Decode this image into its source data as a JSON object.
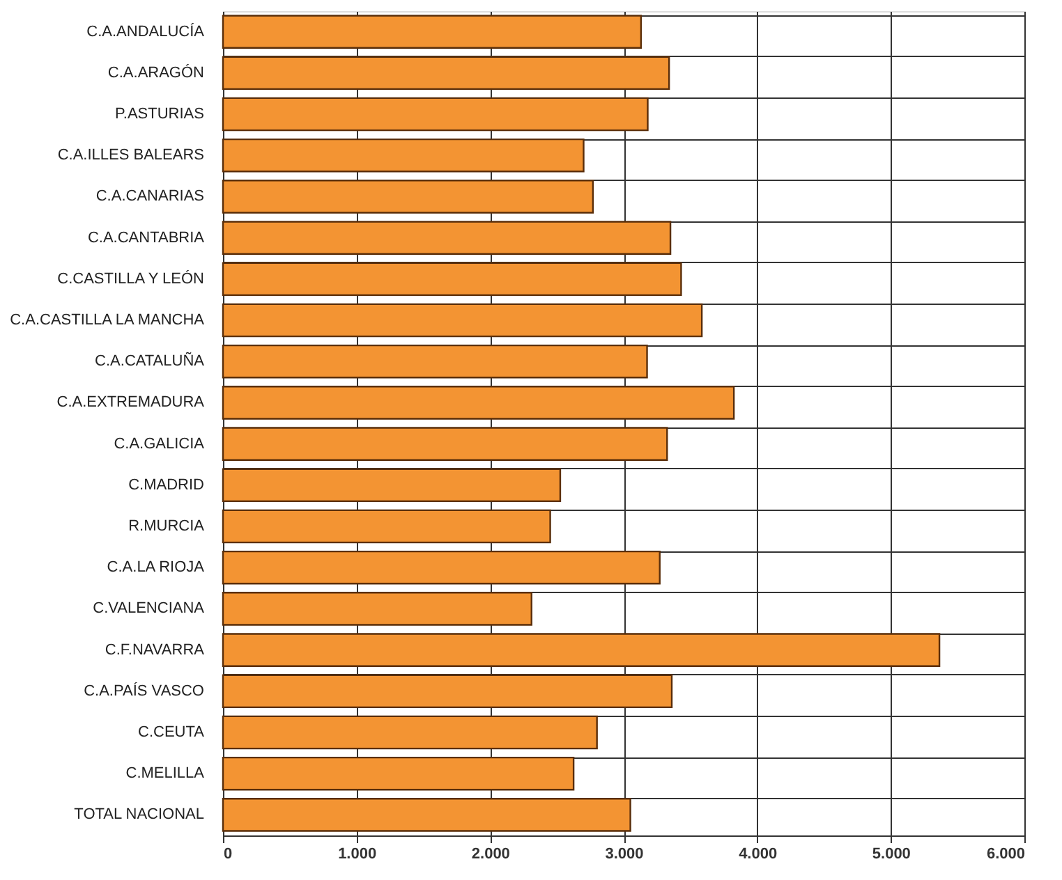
{
  "chart_data": {
    "type": "bar",
    "orientation": "horizontal",
    "categories": [
      "C.A.ANDALUCÍA",
      "C.A.ARAGÓN",
      "P.ASTURIAS",
      "C.A.ILLES BALEARS",
      "C.A.CANARIAS",
      "C.A.CANTABRIA",
      "C.CASTILLA Y LEÓN",
      "C.A.CASTILLA LA MANCHA",
      "C.A.CATALUÑA",
      "C.A.EXTREMADURA",
      "C.A.GALICIA",
      "C.MADRID",
      "R.MURCIA",
      "C.A.LA RIOJA",
      "C.VALENCIANA",
      "C.F.NAVARRA",
      "C.A.PAÍS VASCO",
      "C.CEUTA",
      "C.MELILLA",
      "TOTAL NACIONAL"
    ],
    "values": [
      3130,
      3340,
      3180,
      2700,
      2770,
      3350,
      3430,
      3585,
      3175,
      3825,
      3325,
      2525,
      2450,
      3270,
      2310,
      5364,
      3360,
      2800,
      2625,
      3050
    ],
    "color": "#f39433",
    "xlim": [
      0,
      6000
    ],
    "xticks": [
      0,
      {
        "value": 1000,
        "label": "1.000"
      },
      {
        "value": 2000,
        "label": "2.000"
      },
      {
        "value": 3000,
        "label": "3.000"
      },
      {
        "value": 4000,
        "label": "4.000"
      },
      {
        "value": 5000,
        "label": "5.000"
      },
      {
        "value": 6000,
        "label": "6.000"
      }
    ],
    "grid": true
  }
}
